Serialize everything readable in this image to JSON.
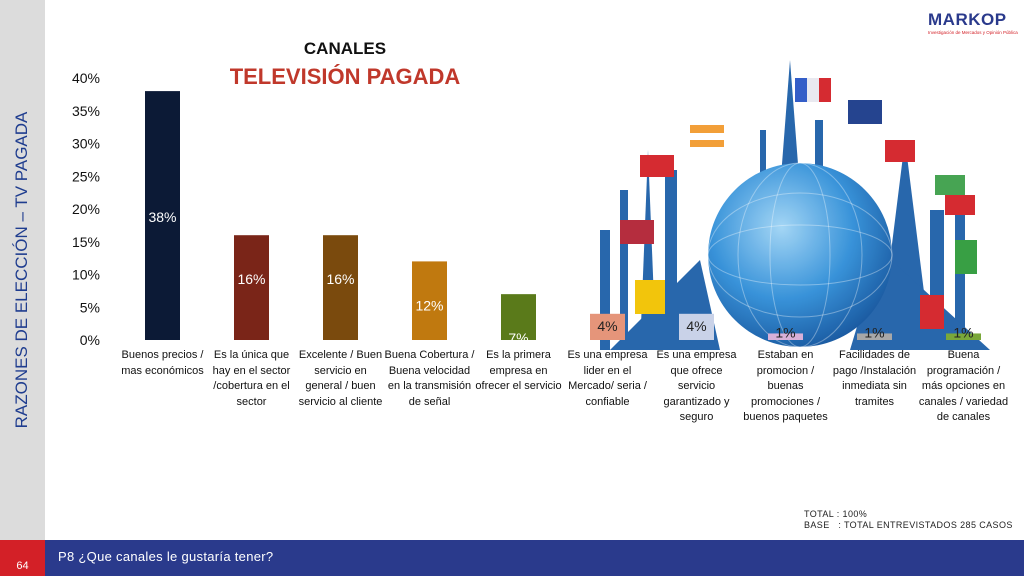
{
  "page": {
    "side_title": "RAZONES DE ELECCIÓN – TV PAGADA",
    "page_number": "64",
    "question": "P8 ¿Que canales le gustaría tener?",
    "logo": {
      "name": "MARKOP",
      "tagline": "Investigación de Mercados y Opinión Pública"
    },
    "notes": {
      "total": "TOTAL : 100%",
      "base": "BASE   : TOTAL ENTREVISTADOS 285 CASOS"
    },
    "colors": {
      "side_text": "#1f3d8f",
      "footer": "#2a3a8c",
      "accent": "#d32027"
    }
  },
  "chart_data": {
    "type": "bar",
    "title": "CANALES",
    "subtitle": "TELEVISIÓN PAGADA",
    "yticks": [
      "0%",
      "5%",
      "10%",
      "15%",
      "20%",
      "25%",
      "30%",
      "35%",
      "40%"
    ],
    "ylim": [
      0,
      40
    ],
    "grid": false,
    "categories": [
      "Buenos precios / mas económicos",
      "Es la única que hay en el sector /cobertura en el sector",
      "Excelente / Buen servicio en general / buen servicio al cliente",
      "Buena Cobertura / Buena velocidad en la transmisión de señal",
      "Es la primera empresa en ofrecer el servicio",
      "Es una empresa lider en el Mercado/ seria / confiable",
      "Es una empresa que ofrece servicio garantizado y seguro",
      "Estaban en promocion / buenas promociones / buenos paquetes",
      "Facilidades de pago /Instalación inmediata sin tramites",
      "Buena programación / más opciones en canales / variedad de canales"
    ],
    "values": [
      38,
      16,
      16,
      12,
      7,
      4,
      4,
      1,
      1,
      1
    ],
    "data_labels": [
      "38%",
      "16%",
      "16%",
      "12%",
      "7%",
      "4%",
      "4%",
      "1%",
      "1%",
      "1%"
    ],
    "colors": [
      "#0c1a36",
      "#7a2518",
      "#7a4a0d",
      "#c0790f",
      "#5a7a1a",
      "#e5957a",
      "#c9d2e8",
      "#d8b0d8",
      "#a8a8a8",
      "#7aa83a"
    ]
  }
}
